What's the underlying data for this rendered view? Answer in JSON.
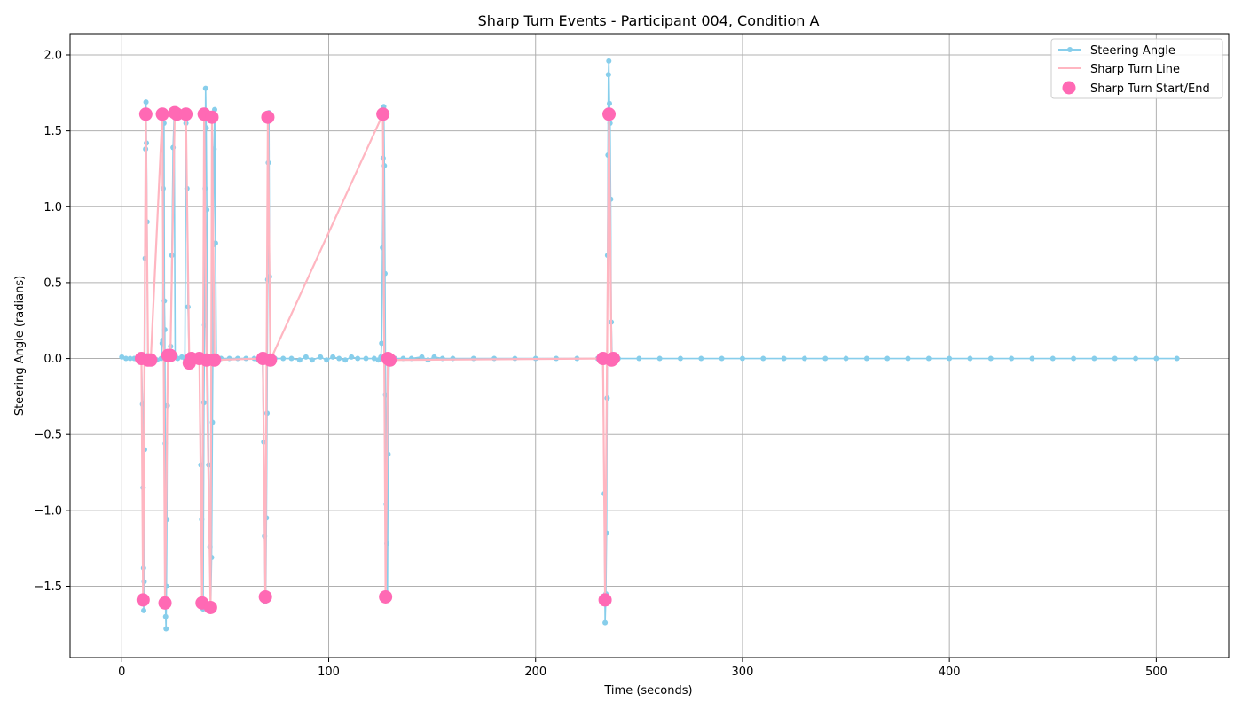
{
  "chart_data": {
    "type": "line",
    "title": "Sharp Turn Events - Participant 004, Condition A",
    "xlabel": "Time (seconds)",
    "ylabel": "Steering Angle (radians)",
    "xlim": [
      -25,
      535
    ],
    "ylim": [
      -1.97,
      2.14
    ],
    "xticks": [
      0,
      100,
      200,
      300,
      400,
      500
    ],
    "yticks": [
      -1.5,
      -1.0,
      -0.5,
      0.0,
      0.5,
      1.0,
      1.5,
      2.0
    ],
    "xtick_labels": [
      "0",
      "100",
      "200",
      "300",
      "400",
      "500"
    ],
    "ytick_labels": [
      "−1.5",
      "−1.0",
      "−0.5",
      "0.0",
      "0.5",
      "1.0",
      "1.5",
      "2.0"
    ],
    "grid": true,
    "legend_position": "top-right",
    "colors": {
      "steering": "#87ceeb",
      "sharp_line": "#ffb6c1",
      "start_end": "#ff69b4",
      "grid": "#b0b0b0"
    },
    "series": [
      {
        "name": "Steering Angle",
        "style": "line-marker",
        "points": [
          [
            0,
            0.01
          ],
          [
            2,
            0.0
          ],
          [
            4,
            0.0
          ],
          [
            6,
            0.0
          ],
          [
            8,
            0.0
          ],
          [
            9.5,
            0.0
          ],
          [
            10,
            -0.3
          ],
          [
            10.3,
            -0.85
          ],
          [
            10.5,
            -1.38
          ],
          [
            10.6,
            -1.66
          ],
          [
            10.8,
            -1.47
          ],
          [
            11,
            -0.6
          ],
          [
            11.3,
            0.66
          ],
          [
            11.5,
            1.38
          ],
          [
            11.7,
            1.69
          ],
          [
            11.9,
            1.42
          ],
          [
            12.2,
            0.9
          ],
          [
            12.6,
            0.02
          ],
          [
            13,
            -0.01
          ],
          [
            15,
            0.0
          ],
          [
            17,
            -0.01
          ],
          [
            19,
            0.0
          ],
          [
            19.5,
            0.1
          ],
          [
            19.8,
            0.12
          ],
          [
            20,
            1.12
          ],
          [
            20.2,
            1.62
          ],
          [
            20.4,
            1.55
          ],
          [
            20.6,
            0.38
          ],
          [
            20.8,
            0.19
          ],
          [
            21,
            -0.56
          ],
          [
            21.2,
            -1.7
          ],
          [
            21.4,
            -1.78
          ],
          [
            21.6,
            -1.5
          ],
          [
            21.8,
            -1.06
          ],
          [
            22,
            -0.31
          ],
          [
            22.3,
            0.0
          ],
          [
            23,
            0.02
          ],
          [
            23.6,
            0.08
          ],
          [
            24.2,
            0.68
          ],
          [
            24.8,
            1.39
          ],
          [
            25.3,
            1.6
          ],
          [
            25.8,
            0.02
          ],
          [
            27,
            0.0
          ],
          [
            29,
            0.01
          ],
          [
            30.5,
            0.0
          ],
          [
            31,
            1.55
          ],
          [
            31.5,
            1.12
          ],
          [
            32,
            0.34
          ],
          [
            32.6,
            0.0
          ],
          [
            34,
            0.0
          ],
          [
            36,
            0.0
          ],
          [
            37.5,
            -0.01
          ],
          [
            38.2,
            -0.7
          ],
          [
            38.6,
            -1.06
          ],
          [
            38.9,
            -1.6
          ],
          [
            39.3,
            -1.65
          ],
          [
            39.7,
            -0.29
          ],
          [
            40,
            0.22
          ],
          [
            40.3,
            1.12
          ],
          [
            40.5,
            1.78
          ],
          [
            40.8,
            1.52
          ],
          [
            41.1,
            0.98
          ],
          [
            41.5,
            0.0
          ],
          [
            42,
            -0.7
          ],
          [
            42.6,
            -1.24
          ],
          [
            43,
            -1.64
          ],
          [
            43.4,
            -1.31
          ],
          [
            43.8,
            -0.42
          ],
          [
            44,
            0.0
          ],
          [
            44.3,
            0.75
          ],
          [
            44.6,
            1.38
          ],
          [
            44.9,
            1.64
          ],
          [
            45.3,
            0.76
          ],
          [
            45.7,
            0.0
          ],
          [
            48,
            0.0
          ],
          [
            52,
            0.0
          ],
          [
            56,
            0.0
          ],
          [
            60,
            0.0
          ],
          [
            64,
            0.0
          ],
          [
            66,
            -0.01
          ],
          [
            68,
            0.0
          ],
          [
            68.6,
            -0.55
          ],
          [
            69,
            -1.17
          ],
          [
            69.3,
            -1.6
          ],
          [
            69.6,
            -1.57
          ],
          [
            69.9,
            -1.05
          ],
          [
            70.2,
            -0.36
          ],
          [
            70.5,
            0.52
          ],
          [
            70.8,
            1.29
          ],
          [
            71.1,
            1.62
          ],
          [
            71.4,
            0.54
          ],
          [
            71.8,
            0.0
          ],
          [
            74,
            0.0
          ],
          [
            78,
            0.0
          ],
          [
            82,
            0.0
          ],
          [
            86,
            -0.01
          ],
          [
            89,
            0.01
          ],
          [
            92,
            -0.01
          ],
          [
            96,
            0.01
          ],
          [
            99,
            -0.01
          ],
          [
            102,
            0.01
          ],
          [
            105,
            0.0
          ],
          [
            108,
            -0.01
          ],
          [
            111,
            0.01
          ],
          [
            114,
            0.0
          ],
          [
            118,
            0.0
          ],
          [
            122,
            0.0
          ],
          [
            124,
            -0.01
          ],
          [
            125.2,
            0.01
          ],
          [
            125.6,
            0.1
          ],
          [
            126,
            0.73
          ],
          [
            126.3,
            1.32
          ],
          [
            126.6,
            1.66
          ],
          [
            126.9,
            1.27
          ],
          [
            127.2,
            0.56
          ],
          [
            127.5,
            -0.24
          ],
          [
            127.8,
            -0.96
          ],
          [
            128.1,
            -1.22
          ],
          [
            128.4,
            -1.58
          ],
          [
            128.7,
            -0.63
          ],
          [
            129.2,
            0.0
          ],
          [
            132,
            0.0
          ],
          [
            136,
            0.0
          ],
          [
            140,
            0.0
          ],
          [
            145,
            0.01
          ],
          [
            148,
            -0.01
          ],
          [
            151,
            0.01
          ],
          [
            155,
            0.0
          ],
          [
            160,
            0.0
          ],
          [
            170,
            0.0
          ],
          [
            180,
            0.0
          ],
          [
            190,
            0.0
          ],
          [
            200,
            0.0
          ],
          [
            210,
            0.0
          ],
          [
            220,
            0.0
          ],
          [
            230,
            0.0
          ],
          [
            232.5,
            0.0
          ],
          [
            233.2,
            -0.89
          ],
          [
            233.6,
            -1.74
          ],
          [
            234,
            -1.55
          ],
          [
            234.3,
            -1.15
          ],
          [
            234.6,
            -0.26
          ],
          [
            234.8,
            0.68
          ],
          [
            235,
            1.34
          ],
          [
            235.2,
            1.87
          ],
          [
            235.4,
            1.96
          ],
          [
            235.7,
            1.68
          ],
          [
            236,
            1.55
          ],
          [
            236.3,
            1.05
          ],
          [
            236.6,
            0.24
          ],
          [
            237,
            0.0
          ],
          [
            240,
            0.0
          ],
          [
            250,
            0.0
          ],
          [
            260,
            0.0
          ],
          [
            270,
            0.0
          ],
          [
            280,
            0.0
          ],
          [
            290,
            0.0
          ],
          [
            300,
            0.0
          ],
          [
            310,
            0.0
          ],
          [
            320,
            0.0
          ],
          [
            330,
            0.0
          ],
          [
            340,
            0.0
          ],
          [
            350,
            0.0
          ],
          [
            360,
            0.0
          ],
          [
            370,
            0.0
          ],
          [
            380,
            0.0
          ],
          [
            390,
            0.0
          ],
          [
            400,
            0.0
          ],
          [
            410,
            0.0
          ],
          [
            420,
            0.0
          ],
          [
            430,
            0.0
          ],
          [
            440,
            0.0
          ],
          [
            450,
            0.0
          ],
          [
            460,
            0.0
          ],
          [
            470,
            0.0
          ],
          [
            480,
            0.0
          ],
          [
            490,
            0.0
          ],
          [
            500,
            0.0
          ],
          [
            510,
            0.0
          ]
        ]
      },
      {
        "name": "Sharp Turn Line",
        "style": "line",
        "points": [
          [
            9.5,
            0.0
          ],
          [
            10.3,
            -1.59
          ],
          [
            11.6,
            1.61
          ],
          [
            12.7,
            -0.01
          ],
          [
            14,
            -0.01
          ],
          [
            19.6,
            1.61
          ],
          [
            20.9,
            -1.61
          ],
          [
            22.3,
            0.02
          ],
          [
            23.5,
            0.02
          ],
          [
            25.6,
            1.62
          ],
          [
            26.6,
            1.61
          ],
          [
            31,
            1.61
          ],
          [
            32.6,
            -0.03
          ],
          [
            33.6,
            0.0
          ],
          [
            37.5,
            0.0
          ],
          [
            38.8,
            -1.61
          ],
          [
            39.8,
            1.61
          ],
          [
            41,
            -0.01
          ],
          [
            42.9,
            -1.64
          ],
          [
            43.6,
            1.59
          ],
          [
            44.8,
            -0.01
          ],
          [
            68.2,
            0.0
          ],
          [
            69.4,
            -1.57
          ],
          [
            70.6,
            1.59
          ],
          [
            71.8,
            -0.01
          ],
          [
            126.2,
            1.61
          ],
          [
            127.5,
            -1.57
          ],
          [
            128.6,
            0.0
          ],
          [
            129.6,
            -0.01
          ],
          [
            232.6,
            0.0
          ],
          [
            233.6,
            -1.59
          ],
          [
            235.5,
            1.61
          ],
          [
            236.7,
            -0.01
          ],
          [
            237.6,
            0.0
          ]
        ]
      },
      {
        "name": "Sharp Turn Start/End",
        "style": "scatter",
        "points": [
          [
            9.5,
            0.0
          ],
          [
            10.3,
            -1.59
          ],
          [
            11.6,
            1.61
          ],
          [
            12.7,
            -0.01
          ],
          [
            14,
            -0.01
          ],
          [
            19.6,
            1.61
          ],
          [
            20.9,
            -1.61
          ],
          [
            22.3,
            0.02
          ],
          [
            23.5,
            0.02
          ],
          [
            25.6,
            1.62
          ],
          [
            26.6,
            1.61
          ],
          [
            31,
            1.61
          ],
          [
            32.6,
            -0.03
          ],
          [
            33.6,
            0.0
          ],
          [
            37.5,
            0.0
          ],
          [
            38.8,
            -1.61
          ],
          [
            39.8,
            1.61
          ],
          [
            41,
            -0.01
          ],
          [
            42.9,
            -1.64
          ],
          [
            43.6,
            1.59
          ],
          [
            44.8,
            -0.01
          ],
          [
            68.2,
            0.0
          ],
          [
            69.4,
            -1.57
          ],
          [
            70.6,
            1.59
          ],
          [
            71.8,
            -0.01
          ],
          [
            126.2,
            1.61
          ],
          [
            127.5,
            -1.57
          ],
          [
            128.6,
            0.0
          ],
          [
            129.6,
            -0.01
          ],
          [
            232.6,
            0.0
          ],
          [
            233.6,
            -1.59
          ],
          [
            235.5,
            1.61
          ],
          [
            236.7,
            -0.01
          ],
          [
            237.6,
            0.0
          ]
        ]
      }
    ]
  }
}
